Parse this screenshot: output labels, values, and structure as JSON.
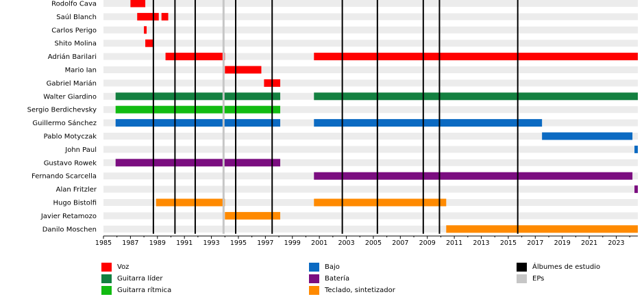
{
  "chart_data": {
    "type": "timeline",
    "xlim": [
      1985,
      2024.6
    ],
    "ticks": [
      1985,
      1987,
      1989,
      1991,
      1993,
      1995,
      1997,
      1999,
      2001,
      2003,
      2005,
      2007,
      2009,
      2011,
      2013,
      2015,
      2017,
      2019,
      2021,
      2023
    ],
    "members": [
      {
        "name": "Rodolfo Cava",
        "bars": [
          {
            "role": "voz",
            "start": 1987.0,
            "end": 1988.1
          }
        ]
      },
      {
        "name": "Saúl Blanch",
        "bars": [
          {
            "role": "voz",
            "start": 1987.5,
            "end": 1989.1
          },
          {
            "role": "voz",
            "start": 1989.3,
            "end": 1989.8
          }
        ]
      },
      {
        "name": "Carlos Perigo",
        "bars": [
          {
            "role": "voz",
            "start": 1988.0,
            "end": 1988.2
          }
        ]
      },
      {
        "name": "Shito Molina",
        "bars": [
          {
            "role": "voz",
            "start": 1988.1,
            "end": 1988.7
          }
        ]
      },
      {
        "name": "Adrián Barilari",
        "bars": [
          {
            "role": "voz",
            "start": 1989.6,
            "end": 1994.0
          },
          {
            "role": "voz",
            "start": 2000.6,
            "end": 2024.6
          }
        ]
      },
      {
        "name": "Mario Ian",
        "bars": [
          {
            "role": "voz",
            "start": 1994.0,
            "end": 1996.7
          }
        ]
      },
      {
        "name": "Gabriel Marián",
        "bars": [
          {
            "role": "voz",
            "start": 1996.9,
            "end": 1998.1
          }
        ]
      },
      {
        "name": "Walter Giardino",
        "bars": [
          {
            "role": "guitarra_lider",
            "start": 1985.9,
            "end": 1998.1
          },
          {
            "role": "guitarra_lider",
            "start": 2000.6,
            "end": 2024.6
          }
        ]
      },
      {
        "name": "Sergio Berdichevsky",
        "bars": [
          {
            "role": "guitarra_ritmica",
            "start": 1985.9,
            "end": 1998.1
          }
        ]
      },
      {
        "name": "Guillermo Sánchez",
        "bars": [
          {
            "role": "bajo",
            "start": 1985.9,
            "end": 1998.1
          },
          {
            "role": "bajo",
            "start": 2000.6,
            "end": 2017.5
          }
        ]
      },
      {
        "name": "Pablo Motyczak",
        "bars": [
          {
            "role": "bajo",
            "start": 2017.5,
            "end": 2024.2
          }
        ]
      },
      {
        "name": "John Paul",
        "bars": [
          {
            "role": "bajo",
            "start": 2024.35,
            "end": 2024.6
          }
        ]
      },
      {
        "name": "Gustavo Rowek",
        "bars": [
          {
            "role": "bateria",
            "start": 1985.9,
            "end": 1998.1
          }
        ]
      },
      {
        "name": "Fernando Scarcella",
        "bars": [
          {
            "role": "bateria",
            "start": 2000.6,
            "end": 2024.2
          }
        ]
      },
      {
        "name": "Alan Fritzler",
        "bars": [
          {
            "role": "bateria",
            "start": 2024.35,
            "end": 2024.6
          }
        ]
      },
      {
        "name": "Hugo Bistolfi",
        "bars": [
          {
            "role": "teclado",
            "start": 1988.9,
            "end": 1994.0
          },
          {
            "role": "teclado",
            "start": 2000.6,
            "end": 2010.4
          }
        ]
      },
      {
        "name": "Javier Retamozo",
        "bars": [
          {
            "role": "teclado",
            "start": 1994.0,
            "end": 1998.1
          }
        ]
      },
      {
        "name": "Danilo Moschen",
        "bars": [
          {
            "role": "teclado",
            "start": 2010.4,
            "end": 2024.6
          }
        ]
      }
    ],
    "studio_albums": [
      1988.7,
      1990.3,
      1991.8,
      1994.8,
      1997.5,
      2002.7,
      2005.3,
      2008.7,
      2009.9,
      2015.7
    ],
    "eps": [
      1993.9
    ],
    "legend": [
      {
        "key": "voz",
        "label": "Voz",
        "color": "#ff0000"
      },
      {
        "key": "guitarra_lider",
        "label": "Guitarra líder",
        "color": "#138040"
      },
      {
        "key": "guitarra_ritmica",
        "label": "Guitarra rítmica",
        "color": "#12bb12"
      },
      {
        "key": "bajo",
        "label": "Bajo",
        "color": "#0b6ac2"
      },
      {
        "key": "bateria",
        "label": "Batería",
        "color": "#7b0d80"
      },
      {
        "key": "teclado",
        "label": "Teclado, sintetizador",
        "color": "#ff8a00"
      },
      {
        "key": "albumes",
        "label": "Álbumes de estudio",
        "color": "#000000"
      },
      {
        "key": "eps",
        "label": "EPs",
        "color": "#c6c6c6"
      }
    ]
  }
}
